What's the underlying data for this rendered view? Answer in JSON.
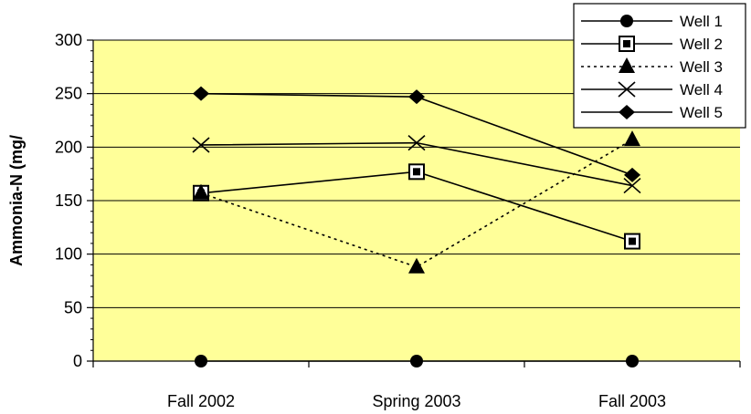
{
  "chart_data": {
    "type": "line",
    "categories": [
      "Fall 2002",
      "Spring 2003",
      "Fall 2003"
    ],
    "ylabel": "Ammonia-N (mg/",
    "xlabel": "",
    "ylim": [
      0,
      300
    ],
    "yticks": [
      0,
      50,
      100,
      150,
      200,
      250,
      300
    ],
    "grid": true,
    "plot_background": "#FFFF99",
    "legend_position": "top-right",
    "series": [
      {
        "name": "Well 1",
        "marker": "circle",
        "line": "solid",
        "values": [
          0,
          0,
          0
        ]
      },
      {
        "name": "Well 2",
        "marker": "square",
        "line": "solid",
        "values": [
          157,
          177,
          112
        ]
      },
      {
        "name": "Well 3",
        "marker": "triangle",
        "line": "dotted",
        "values": [
          157,
          88,
          207
        ]
      },
      {
        "name": "Well 4",
        "marker": "x",
        "line": "solid",
        "values": [
          202,
          204,
          164
        ]
      },
      {
        "name": "Well 5",
        "marker": "diamond",
        "line": "solid",
        "values": [
          250,
          247,
          174
        ]
      }
    ]
  }
}
